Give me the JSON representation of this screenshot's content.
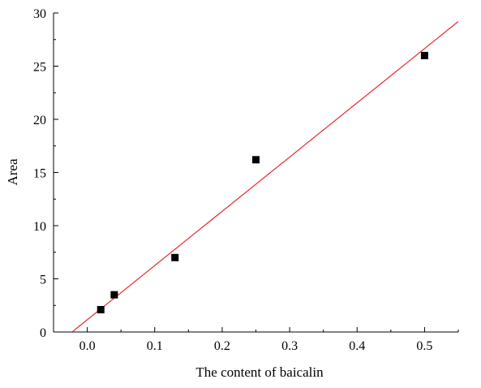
{
  "chart_data": {
    "type": "scatter",
    "title": "",
    "xlabel": "The content of baicalin",
    "ylabel": "Area",
    "xlim": [
      -0.05,
      0.55
    ],
    "ylim": [
      0,
      30
    ],
    "x_ticks": [
      0.0,
      0.1,
      0.2,
      0.3,
      0.4,
      0.5
    ],
    "x_tick_labels": [
      "0.0",
      "0.1",
      "0.2",
      "0.3",
      "0.4",
      "0.5"
    ],
    "y_ticks": [
      0,
      5,
      10,
      15,
      20,
      25,
      30
    ],
    "y_tick_labels": [
      "0",
      "5",
      "10",
      "15",
      "20",
      "25",
      "30"
    ],
    "grid": false,
    "legend": "none",
    "points": {
      "x": [
        0.02,
        0.04,
        0.13,
        0.25,
        0.5
      ],
      "y": [
        2.1,
        3.5,
        7.0,
        16.2,
        26.0
      ],
      "marker": "square",
      "color": "#000000"
    },
    "fit_line": {
      "slope": 51.0,
      "intercept": 1.15,
      "color": "#e8262b"
    }
  }
}
